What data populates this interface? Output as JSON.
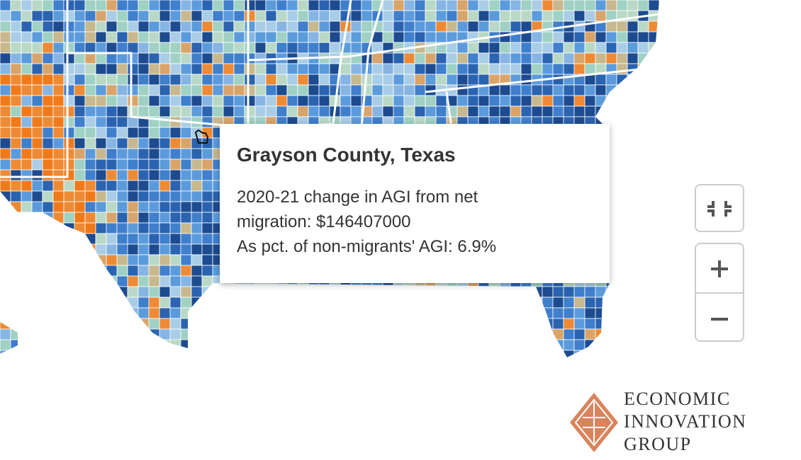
{
  "tooltip": {
    "title": "Grayson County, Texas",
    "line1": "2020-21 change in AGI from net migration: $146407000",
    "line2": "As pct. of non-migrants' AGI: 6.9%"
  },
  "logo": {
    "lines": [
      "ECONOMIC",
      "INNOVATION",
      "GROUP"
    ]
  }
}
